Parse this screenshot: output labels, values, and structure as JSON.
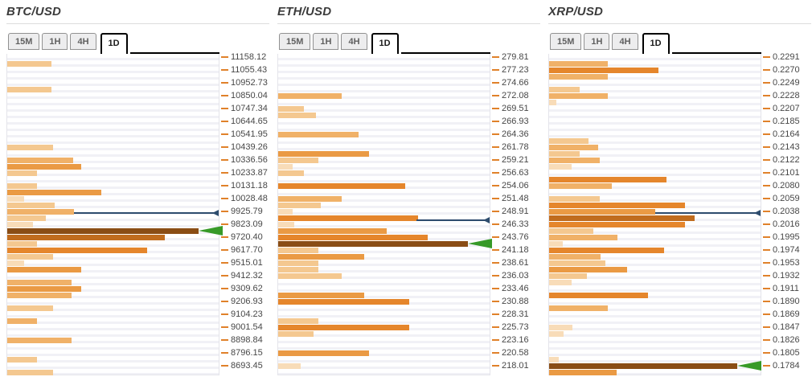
{
  "page": {
    "background": "#ffffff"
  },
  "colors": {
    "title": "#3b3b3b",
    "rule": "#dcdcdc",
    "grid_stripe": "#f1f1f6",
    "plot_border": "#e4e4ea",
    "tick": "#e0812a",
    "label_text": "#474747",
    "marker_blue": "#2e4d6e",
    "poc_green": "#379a28",
    "tab_bg": "#ededee",
    "tab_border": "#919191",
    "tab_text": "#5f5f5f",
    "tab_active_border": "#000000",
    "bar_palette": {
      "c1": "#f8dcb8",
      "c2": "#f4c890",
      "c3": "#f0b168",
      "c4": "#ea9a44",
      "c5": "#e5862c",
      "c6": "#c06c1e",
      "c7": "#8a4d15"
    }
  },
  "bars_format": [
    "row_index",
    "width_fraction_of_plot",
    "color_level_1to7"
  ],
  "chart_data": [
    {
      "pair": "BTC/USD",
      "type": "bar",
      "orientation": "horizontal",
      "timeframes": [
        "15M",
        "1H",
        "4H",
        "1D"
      ],
      "active_timeframe": "1D",
      "price_labels": [
        "11158.12",
        "11055.43",
        "10952.73",
        "10850.04",
        "10747.34",
        "10644.65",
        "10541.95",
        "10439.26",
        "10336.56",
        "10233.87",
        "10131.18",
        "10028.48",
        "9925.79",
        "9823.09",
        "9720.40",
        "9617.70",
        "9515.01",
        "9412.32",
        "9309.62",
        "9206.93",
        "9104.23",
        "9001.54",
        "8898.84",
        "8796.15",
        "8693.45"
      ],
      "row_count": 50,
      "bars": [
        [
          1,
          0.21,
          2
        ],
        [
          5,
          0.21,
          2
        ],
        [
          14,
          0.215,
          2
        ],
        [
          16,
          0.31,
          3
        ],
        [
          17,
          0.35,
          4
        ],
        [
          18,
          0.14,
          2
        ],
        [
          20,
          0.14,
          2
        ],
        [
          21,
          0.445,
          4
        ],
        [
          22,
          0.08,
          1
        ],
        [
          23,
          0.225,
          2
        ],
        [
          24,
          0.315,
          3
        ],
        [
          25,
          0.184,
          2
        ],
        [
          26,
          0.12,
          1
        ],
        [
          27,
          0.905,
          7
        ],
        [
          28,
          0.747,
          6
        ],
        [
          29,
          0.14,
          2
        ],
        [
          30,
          0.66,
          5
        ],
        [
          31,
          0.215,
          2
        ],
        [
          32,
          0.08,
          1
        ],
        [
          33,
          0.35,
          4
        ],
        [
          35,
          0.305,
          3
        ],
        [
          36,
          0.35,
          4
        ],
        [
          37,
          0.305,
          3
        ],
        [
          39,
          0.215,
          2
        ],
        [
          41,
          0.14,
          3
        ],
        [
          44,
          0.305,
          3
        ],
        [
          47,
          0.14,
          2
        ],
        [
          49,
          0.215,
          2
        ]
      ],
      "markers": {
        "current_price_line": {
          "row": 24.3,
          "from": 0.315
        },
        "poc_arrow": {
          "row": 27,
          "tip": 0.905
        }
      }
    },
    {
      "pair": "ETH/USD",
      "type": "bar",
      "orientation": "horizontal",
      "timeframes": [
        "15M",
        "1H",
        "4H",
        "1D"
      ],
      "active_timeframe": "1D",
      "price_labels": [
        "279.81",
        "277.23",
        "274.66",
        "272.08",
        "269.51",
        "266.93",
        "264.36",
        "261.78",
        "259.21",
        "256.63",
        "254.06",
        "251.48",
        "248.91",
        "246.33",
        "243.76",
        "241.18",
        "238.61",
        "236.03",
        "233.46",
        "230.88",
        "228.31",
        "225.73",
        "223.16",
        "220.58",
        "218.01"
      ],
      "row_count": 50,
      "bars": [
        [
          6,
          0.3,
          3
        ],
        [
          8,
          0.12,
          2
        ],
        [
          9,
          0.18,
          2
        ],
        [
          12,
          0.382,
          3
        ],
        [
          15,
          0.43,
          4
        ],
        [
          16,
          0.19,
          2
        ],
        [
          17,
          0.067,
          1
        ],
        [
          18,
          0.12,
          2
        ],
        [
          20,
          0.6,
          5
        ],
        [
          22,
          0.3,
          3
        ],
        [
          23,
          0.2,
          2
        ],
        [
          24,
          0.07,
          1
        ],
        [
          25,
          0.66,
          5
        ],
        [
          26,
          0.075,
          1
        ],
        [
          27,
          0.513,
          4
        ],
        [
          28,
          0.708,
          5
        ],
        [
          29,
          0.898,
          7
        ],
        [
          30,
          0.19,
          2
        ],
        [
          31,
          0.408,
          4
        ],
        [
          32,
          0.19,
          2
        ],
        [
          33,
          0.19,
          2
        ],
        [
          34,
          0.3,
          2
        ],
        [
          37,
          0.408,
          4
        ],
        [
          38,
          0.62,
          5
        ],
        [
          41,
          0.19,
          2
        ],
        [
          42,
          0.62,
          5
        ],
        [
          43,
          0.168,
          2
        ],
        [
          46,
          0.43,
          4
        ],
        [
          48,
          0.108,
          1
        ]
      ],
      "markers": {
        "current_price_line": {
          "row": 25.4,
          "from": 0.655
        },
        "poc_arrow": {
          "row": 29,
          "tip": 0.898
        }
      }
    },
    {
      "pair": "XRP/USD",
      "type": "bar",
      "orientation": "horizontal",
      "timeframes": [
        "15M",
        "1H",
        "4H",
        "1D"
      ],
      "active_timeframe": "1D",
      "price_labels": [
        "0.2291",
        "0.2270",
        "0.2249",
        "0.2228",
        "0.2207",
        "0.2185",
        "0.2164",
        "0.2143",
        "0.2122",
        "0.2101",
        "0.2080",
        "0.2059",
        "0.2038",
        "0.2016",
        "0.1995",
        "0.1974",
        "0.1953",
        "0.1932",
        "0.1911",
        "0.1890",
        "0.1869",
        "0.1847",
        "0.1826",
        "0.1805",
        "0.1784"
      ],
      "row_count": 50,
      "bars": [
        [
          1,
          0.278,
          3
        ],
        [
          2,
          0.519,
          5
        ],
        [
          3,
          0.278,
          3
        ],
        [
          5,
          0.144,
          2
        ],
        [
          6,
          0.278,
          3
        ],
        [
          7,
          0.033,
          1
        ],
        [
          13,
          0.185,
          2
        ],
        [
          14,
          0.233,
          3
        ],
        [
          15,
          0.144,
          2
        ],
        [
          16,
          0.241,
          3
        ],
        [
          17,
          0.107,
          1
        ],
        [
          19,
          0.556,
          5
        ],
        [
          20,
          0.296,
          3
        ],
        [
          22,
          0.241,
          2
        ],
        [
          23,
          0.644,
          5
        ],
        [
          24,
          0.5,
          4
        ],
        [
          25,
          0.689,
          6
        ],
        [
          26,
          0.644,
          5
        ],
        [
          27,
          0.211,
          2
        ],
        [
          28,
          0.322,
          3
        ],
        [
          29,
          0.063,
          1
        ],
        [
          30,
          0.544,
          5
        ],
        [
          31,
          0.244,
          3
        ],
        [
          32,
          0.267,
          2
        ],
        [
          33,
          0.367,
          4
        ],
        [
          34,
          0.178,
          2
        ],
        [
          35,
          0.107,
          1
        ],
        [
          37,
          0.467,
          5
        ],
        [
          39,
          0.278,
          3
        ],
        [
          42,
          0.111,
          1
        ],
        [
          43,
          0.067,
          1
        ],
        [
          47,
          0.044,
          1
        ],
        [
          48,
          0.889,
          7
        ],
        [
          49,
          0.319,
          4
        ]
      ],
      "markers": {
        "current_price_line": {
          "row": 24.3,
          "from": 0.5
        },
        "poc_arrow": {
          "row": 48,
          "tip": 0.889
        }
      }
    }
  ]
}
